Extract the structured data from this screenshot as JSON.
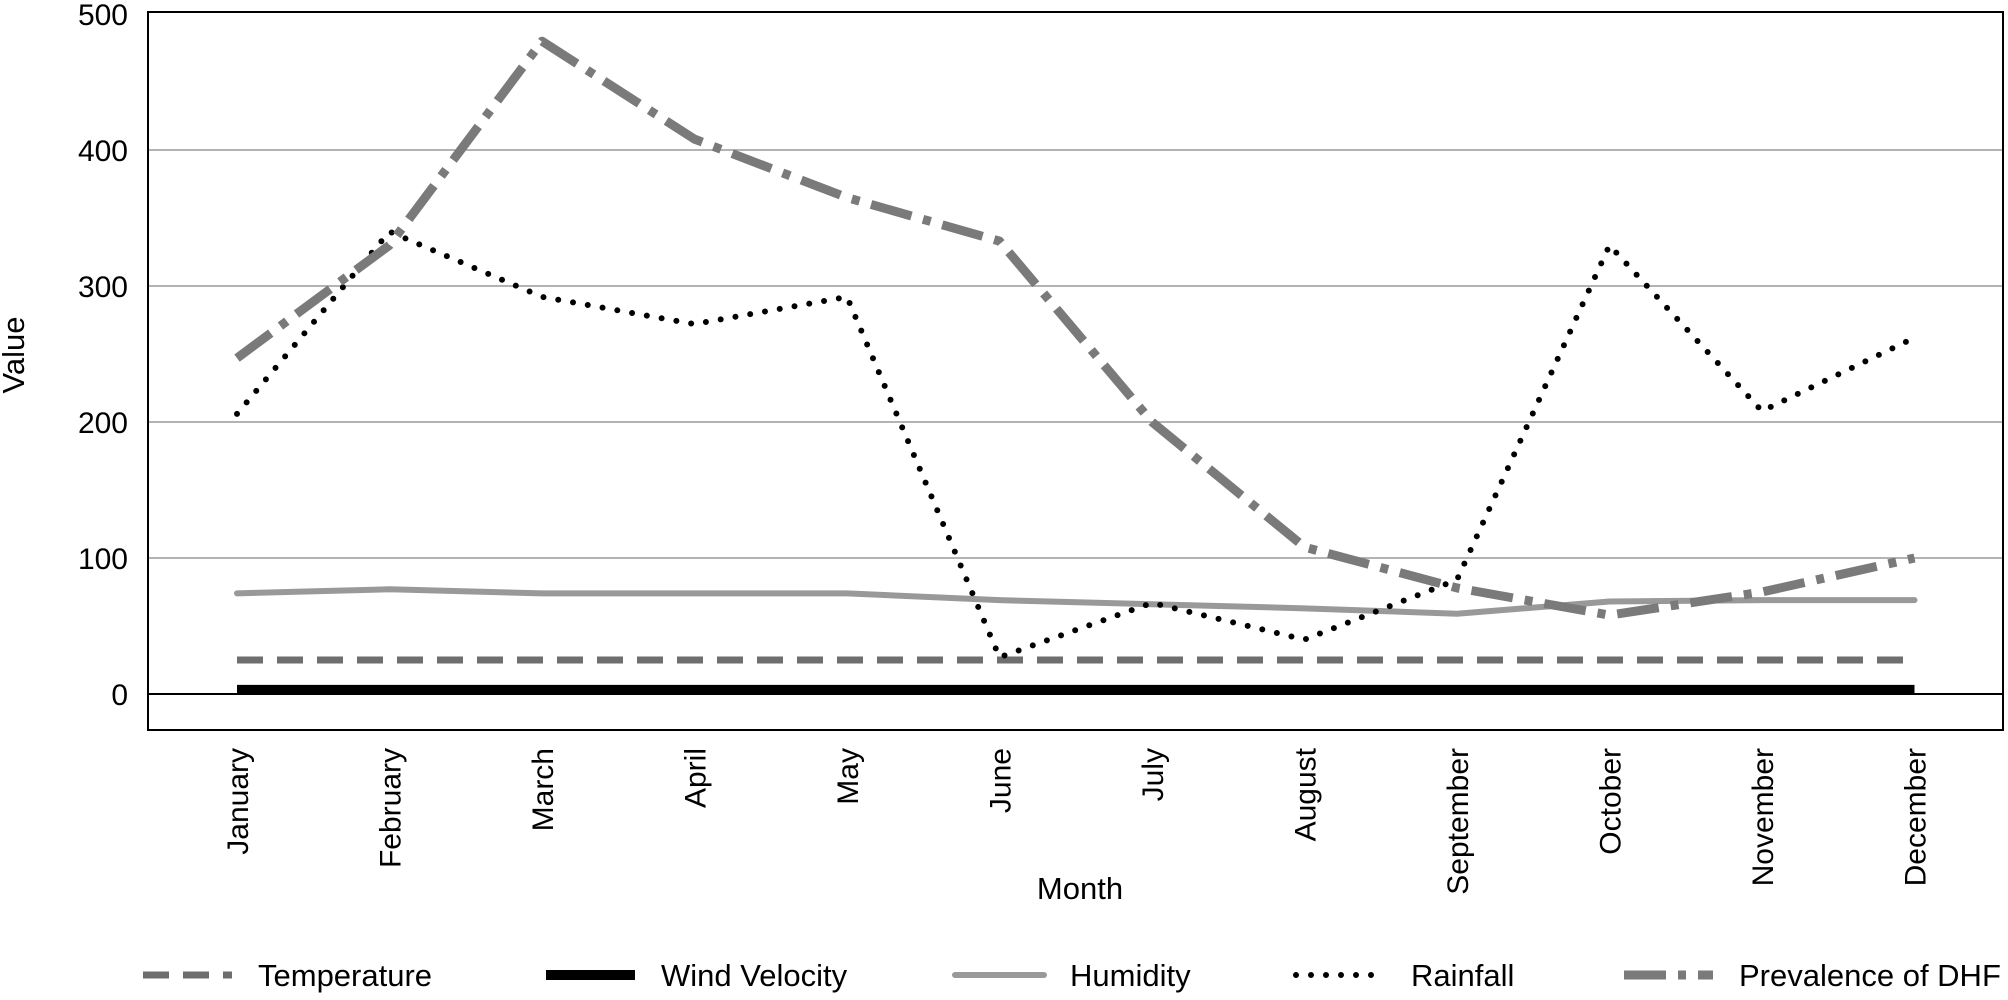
{
  "chart_data": {
    "type": "line",
    "title": "",
    "xlabel": "Month",
    "ylabel": "Value",
    "ylim": [
      -27,
      500
    ],
    "yticks": [
      0,
      100,
      200,
      300,
      400,
      500
    ],
    "grid": "horizontal",
    "legend_position": "bottom",
    "categories": [
      "January",
      "February",
      "March",
      "April",
      "May",
      "June",
      "July",
      "August",
      "September",
      "October",
      "November",
      "December"
    ],
    "series": [
      {
        "name": "Temperature",
        "style": "dashed",
        "color": "#6e6e6e",
        "values": [
          25,
          25,
          25,
          25,
          25,
          25,
          25,
          25,
          25,
          25,
          25,
          25
        ]
      },
      {
        "name": "Wind Velocity",
        "style": "solid-thick",
        "color": "#000000",
        "values": [
          3,
          3,
          3,
          3,
          3,
          3,
          3,
          3,
          3,
          3,
          3,
          3
        ]
      },
      {
        "name": "Humidity",
        "style": "solid",
        "color": "#999999",
        "values": [
          74,
          77,
          74,
          74,
          74,
          69,
          66,
          63,
          59,
          68,
          69,
          69
        ]
      },
      {
        "name": "Rainfall",
        "style": "dotted",
        "color": "#000000",
        "values": [
          206,
          340,
          292,
          272,
          292,
          27,
          67,
          40,
          84,
          330,
          208,
          262
        ]
      },
      {
        "name": "Prevalence of DHF",
        "style": "dash-dot",
        "color": "#7a7a7a",
        "values": [
          247,
          330,
          480,
          408,
          365,
          333,
          200,
          108,
          78,
          58,
          75,
          100
        ]
      }
    ]
  }
}
